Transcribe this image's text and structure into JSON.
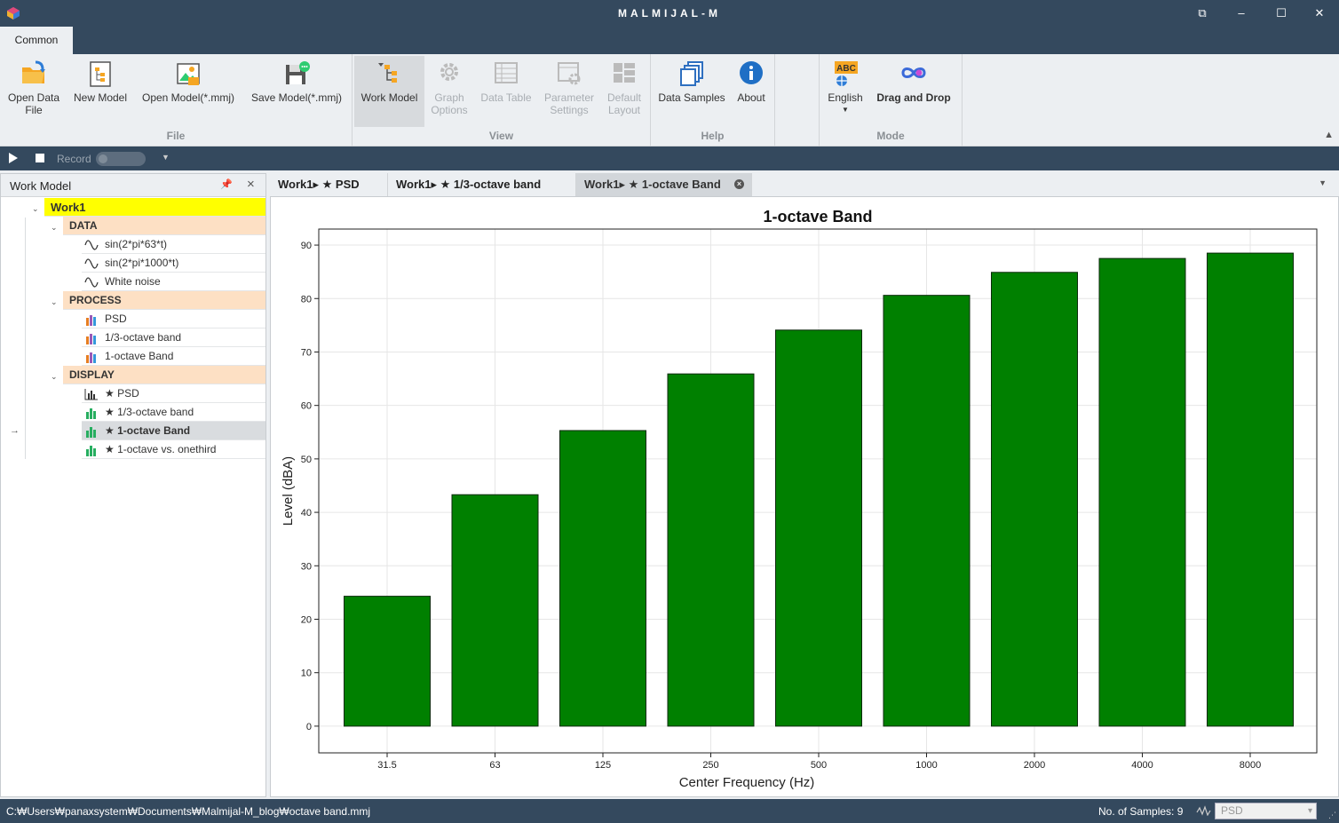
{
  "app": {
    "title": "MALMIJAL-M"
  },
  "ribbon": {
    "tabs": [
      "Common"
    ],
    "groups": {
      "file": {
        "name": "File",
        "buttons": {
          "open_data": [
            "Open Data",
            "File"
          ],
          "new_model": "New Model",
          "open_model": "Open Model(*.mmj)",
          "save_model": "Save Model(*.mmj)"
        }
      },
      "view": {
        "name": "View",
        "buttons": {
          "work_model": "Work Model",
          "graph_options": [
            "Graph",
            "Options"
          ],
          "data_table": "Data Table",
          "parameter_settings": [
            "Parameter",
            "Settings"
          ],
          "default_layout": [
            "Default",
            "Layout"
          ]
        }
      },
      "help": {
        "name": "Help",
        "buttons": {
          "data_samples": "Data Samples",
          "about": "About"
        }
      },
      "mode": {
        "name": "Mode",
        "buttons": {
          "english": "English",
          "drag_and_drop": "Drag and Drop",
          "abc_badge": "ABC"
        }
      }
    }
  },
  "toolbar": {
    "record_label": "Record"
  },
  "work_model": {
    "title": "Work Model",
    "root": "Work1",
    "sections": {
      "data": {
        "label": "DATA",
        "items": [
          "sin(2*pi*63*t)",
          "sin(2*pi*1000*t)",
          "White noise"
        ]
      },
      "process": {
        "label": "PROCESS",
        "items": [
          "PSD",
          "1/3-octave band",
          "1-octave Band"
        ]
      },
      "display": {
        "label": "DISPLAY",
        "items": [
          "★ PSD",
          "★ 1/3-octave band",
          "★ 1-octave Band",
          "★ 1-octave vs. onethird"
        ]
      }
    },
    "selected_item": "★ 1-octave Band"
  },
  "doc_tabs": [
    {
      "label": "Work1▸ ★ PSD"
    },
    {
      "label": "Work1▸ ★ 1/3-octave band"
    },
    {
      "label": "Work1▸ ★ 1-octave Band"
    }
  ],
  "chart_data": {
    "type": "bar",
    "title": "1-octave Band",
    "xlabel": "Center Frequency (Hz)",
    "ylabel": "Level (dBA)",
    "categories": [
      "31.5",
      "63",
      "125",
      "250",
      "500",
      "1000",
      "2000",
      "4000",
      "8000"
    ],
    "values": [
      24.3,
      43.3,
      55.3,
      65.9,
      74.1,
      80.6,
      84.9,
      87.5,
      88.5
    ],
    "ylim": [
      -5,
      93
    ],
    "yticks": [
      0,
      10,
      20,
      30,
      40,
      50,
      60,
      70,
      80,
      90
    ],
    "bar_color": "#008000",
    "grid": true
  },
  "status": {
    "path": "C:₩Users₩panaxsystem₩Documents₩Malmijal-M_blog₩octave band.mmj",
    "samples": "No. of Samples: 9",
    "combo_value": "PSD"
  },
  "colors": {
    "chrome": "#34495e",
    "ribbon": "#eceff2",
    "root_highlight": "#ffff00",
    "section_highlight": "#fde0c4"
  }
}
